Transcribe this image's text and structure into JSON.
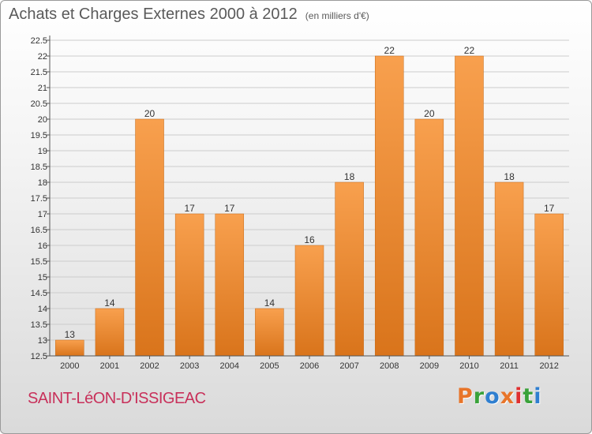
{
  "header": {
    "title": "Achats et Charges Externes 2000 à 2012",
    "unit": "(en milliers d'€)"
  },
  "footer": {
    "commune": "SAINT-LéON-D'ISSIGEAC",
    "logo_text": "Proxiti",
    "logo_colors": [
      "#e8752a",
      "#3aa23a",
      "#2f7fd0",
      "#e8752a",
      "#e03030",
      "#3aa23a",
      "#2f7fd0"
    ]
  },
  "colors": {
    "bar_top": "#f8a04e",
    "bar_bottom": "#d9741b",
    "grid": "#cccccc"
  },
  "chart_data": {
    "type": "bar",
    "title": "Achats et Charges Externes 2000 à 2012",
    "categories": [
      "2000",
      "2001",
      "2002",
      "2003",
      "2004",
      "2005",
      "2006",
      "2007",
      "2008",
      "2009",
      "2010",
      "2011",
      "2012"
    ],
    "values": [
      13,
      14,
      20,
      17,
      17,
      14,
      16,
      18,
      22,
      20,
      22,
      18,
      17
    ],
    "ylim": [
      12.5,
      22.5
    ],
    "yticks": [
      12.5,
      13,
      13.5,
      14,
      14.5,
      15,
      15.5,
      16,
      16.5,
      17,
      17.5,
      18,
      18.5,
      19,
      19.5,
      20,
      20.5,
      21,
      21.5,
      22,
      22.5
    ],
    "grid": true,
    "xlabel": "",
    "ylabel": ""
  }
}
